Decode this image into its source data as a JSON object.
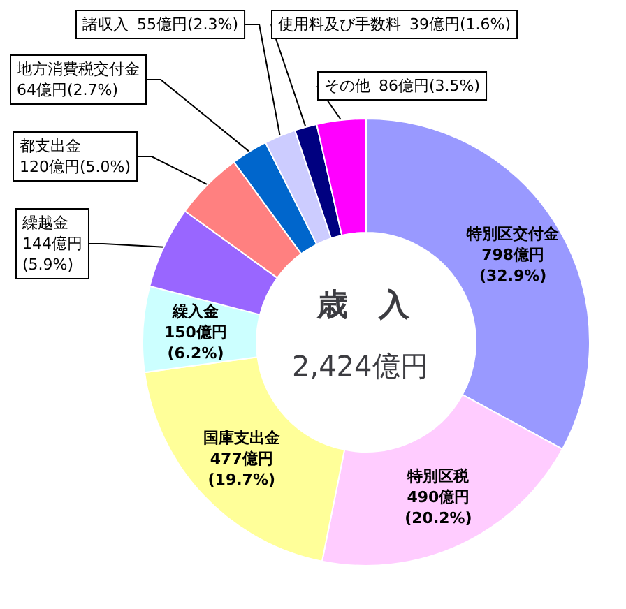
{
  "chart_data": {
    "type": "donut",
    "title": "歳　入",
    "subtitle": "2,424億円",
    "categories": [
      "特別区交付金",
      "特別区税",
      "国庫支出金",
      "繰入金",
      "繰越金",
      "都支出金",
      "地方消費税交付金",
      "諸収入",
      "使用料及び手数料",
      "その他"
    ],
    "values": [
      798,
      490,
      477,
      150,
      144,
      120,
      64,
      55,
      39,
      86
    ],
    "colors": [
      "#9999ff",
      "#ffccff",
      "#ffff99",
      "#ccffff",
      "#9966ff",
      "#ff8080",
      "#0066cc",
      "#ccccff",
      "#000080",
      "#ff00ff"
    ],
    "value_labels": [
      "798億円\n(32.9%)",
      "490億円\n(20.2%)",
      "477億円\n(19.7%)",
      "150億円\n(6.2%)",
      "144億円\n(5.9%)",
      "120億円(5.0%)",
      "64億円(2.7%)",
      "55億円(2.3%)",
      "39億円(1.6%)",
      "86億円(3.5%)"
    ],
    "legend": false
  }
}
